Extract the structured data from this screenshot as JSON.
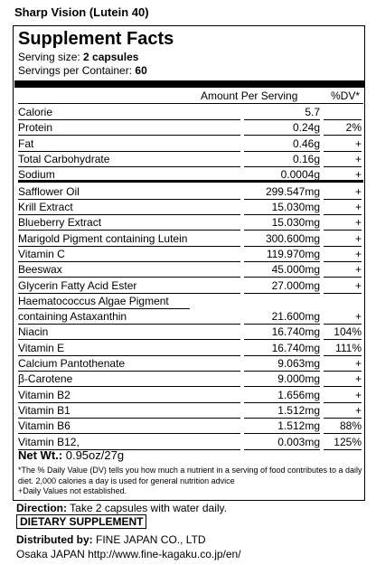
{
  "product_title": "Sharp Vision (Lutein 40)",
  "facts": {
    "heading": "Supplement Facts",
    "serving_size_label": "Serving size:",
    "serving_size": "2 capsules",
    "servings_label": "Servings per Container:",
    "servings": "60",
    "col_amount": "Amount Per Serving",
    "col_dv": "%DV*",
    "rows": [
      {
        "name": "Calorie",
        "amount": "5.7"
      },
      {
        "name": "Protein",
        "amount": "0.24g",
        "dv": "2%"
      },
      {
        "name": "Fat",
        "amount": "0.46g",
        "dv": "+"
      },
      {
        "name": "Total Carbohydrate",
        "amount": "0.16g",
        "dv": "+"
      },
      {
        "name": "Sodium",
        "amount": "0.0004g",
        "dv": "+"
      },
      {
        "name": "Safflower Oil",
        "amount": "299.547mg",
        "dv": "+"
      },
      {
        "name": "Krill Extract",
        "amount": "15.030mg",
        "dv": "+"
      },
      {
        "name": "Blueberry Extract",
        "amount": "15.030mg",
        "dv": "+"
      },
      {
        "name": "Marigold Pigment containing Lutein",
        "amount": "300.600mg",
        "dv": "+"
      },
      {
        "name": "Vitamin C",
        "amount": "119.970mg",
        "dv": "+"
      },
      {
        "name": "Beeswax",
        "amount": "45.000mg",
        "dv": "+"
      },
      {
        "name": "Glycerin Fatty Acid Ester",
        "amount": "27.000mg",
        "dv": "+"
      },
      {
        "name": "Haematococcus Algae Pigment",
        "name2": "containing Astaxanthin",
        "amount": "21.600mg",
        "dv": "+"
      },
      {
        "name": "Niacin",
        "amount": "16.740mg",
        "dv": "104%"
      },
      {
        "name": "Vitamin E",
        "amount": "16.740mg",
        "dv": "111%"
      },
      {
        "name": "Calcium Pantothenate",
        "amount": "9.063mg",
        "dv": "+"
      },
      {
        "name": "β-Carotene",
        "amount": "9.000mg",
        "dv": "+"
      },
      {
        "name": "Vitamin B2",
        "amount": "1.656mg",
        "dv": "+"
      },
      {
        "name": "Vitamin B1",
        "amount": "1.512mg",
        "dv": "+"
      },
      {
        "name": "Vitamin B6",
        "amount": "1.512mg",
        "dv": "88%"
      },
      {
        "name": "Vitamin B12,",
        "amount": "0.003mg",
        "dv": "125%"
      }
    ],
    "net_wt_label": "Net Wt.:",
    "net_wt": "0.95oz/27g",
    "notes": [
      "*The % Daily Value (DV) tells you how much a nutrient in a serving of food contributes to a daily diet. 2,000 calories a day is used for general nutrition advice",
      "+Daily Values not established."
    ]
  },
  "direction_label": "Direction:",
  "direction": "Take 2 capsules with water daily.",
  "dietary": "DIETARY SUPPLEMENT",
  "distributed_label": "Distributed by:",
  "distributed": "FINE JAPAN CO., LTD",
  "address": "Osaka JAPAN http://www.fine-kagaku.co.jp/en/"
}
